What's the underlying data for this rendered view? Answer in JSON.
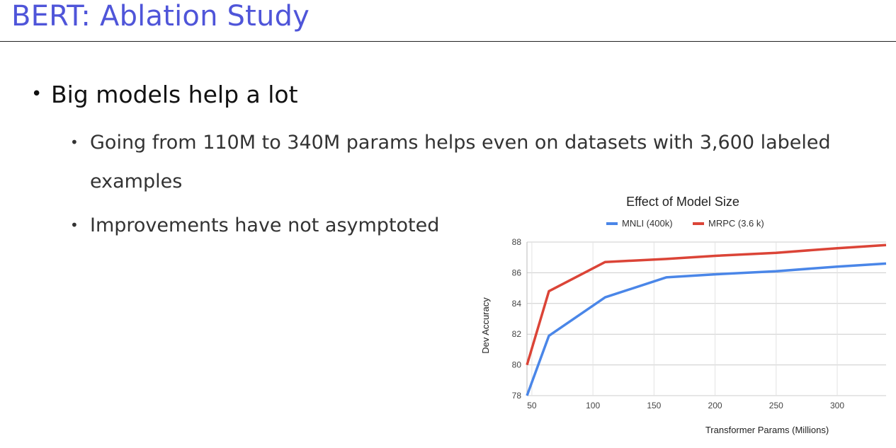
{
  "slide": {
    "title": "BERT: Ablation Study",
    "bullet": "Big models help a lot",
    "sub_bullets": [
      "Going from 110M to 340M params helps even on datasets with 3,600 labeled examples",
      "Improvements have not asymptoted"
    ],
    "bullet_glyph": "•"
  },
  "chart_data": {
    "type": "line",
    "title": "Effect of Model Size",
    "xlabel": "Transformer Params (Millions)",
    "ylabel": "Dev Accuracy",
    "xlim": [
      46,
      340
    ],
    "ylim": [
      78,
      88
    ],
    "xticks": [
      50,
      100,
      150,
      200,
      250,
      300
    ],
    "yticks": [
      78,
      80,
      82,
      84,
      86,
      88
    ],
    "grid": true,
    "legend_position": "top",
    "series": [
      {
        "name": "MNLI (400k)",
        "color": "#4a86e8",
        "points": [
          [
            46,
            78.0
          ],
          [
            64,
            81.9
          ],
          [
            110,
            84.4
          ],
          [
            160,
            85.7
          ],
          [
            200,
            85.9
          ],
          [
            250,
            86.1
          ],
          [
            300,
            86.4
          ],
          [
            340,
            86.6
          ]
        ]
      },
      {
        "name": "MRPC (3.6 k)",
        "color": "#db4437",
        "points": [
          [
            46,
            80.0
          ],
          [
            64,
            84.8
          ],
          [
            110,
            86.7
          ],
          [
            160,
            86.9
          ],
          [
            200,
            87.1
          ],
          [
            250,
            87.3
          ],
          [
            300,
            87.6
          ],
          [
            340,
            87.8
          ]
        ]
      }
    ]
  }
}
